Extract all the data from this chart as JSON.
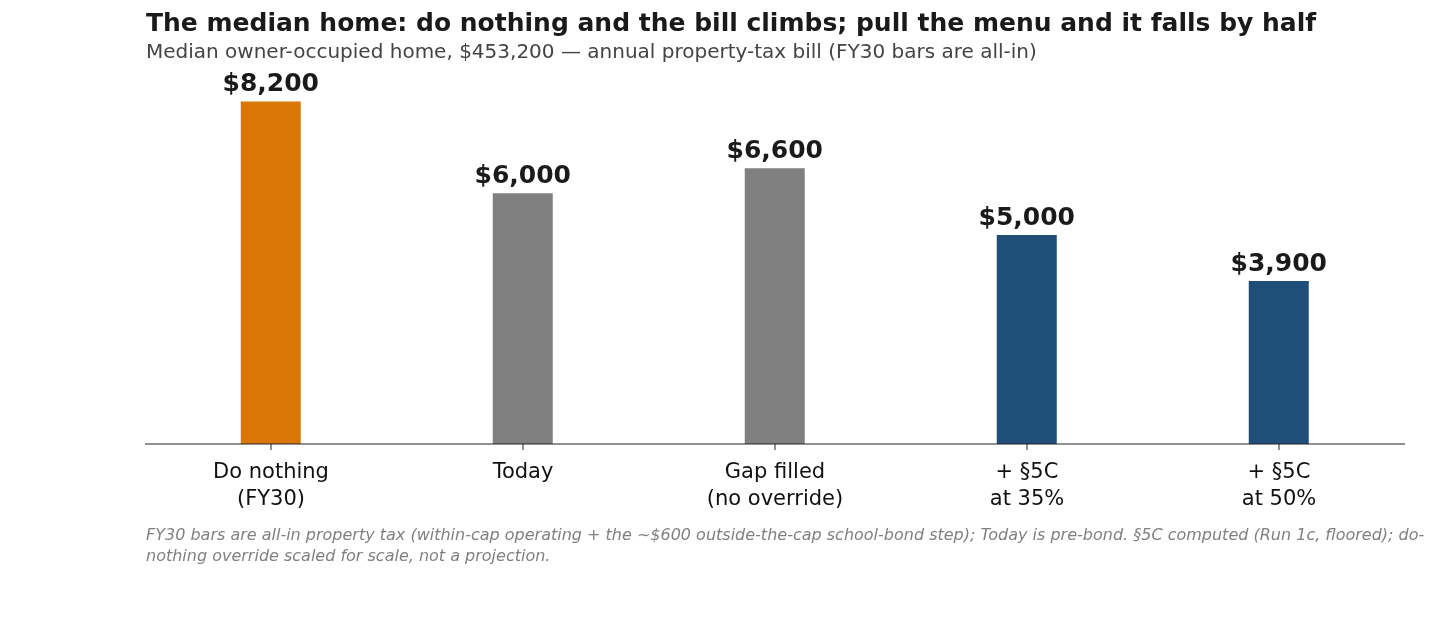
{
  "chart_data": {
    "type": "bar",
    "title": "The median home: do nothing and the bill climbs; pull the menu and it falls by half",
    "subtitle": "Median owner-occupied home, $453,200 — annual property-tax bill (FY30 bars are all-in)",
    "categories": [
      "Do nothing\n(FY30)",
      "Today",
      "Gap filled\n(no override)",
      "+ §5C\nat 35%",
      "+ §5C\nat 50%"
    ],
    "values": [
      8200,
      6000,
      6600,
      5000,
      3900
    ],
    "colors": [
      "#d97706",
      "#808080",
      "#808080",
      "#1f4e79",
      "#1f4e79"
    ],
    "value_labels": [
      "$8,200",
      "$6,000",
      "$6,600",
      "$5,000",
      "$3,900"
    ],
    "grid": false,
    "legend": false,
    "tick_labels": "x",
    "annotations": [
      "FY30 bars are all-in property tax (within-cap operating + the ~$600 outside-the-cap school-bond step); Today is pre-bond. §5C computed (Run 1c, floored); do-nothing override scaled for scale, not a projection."
    ]
  }
}
